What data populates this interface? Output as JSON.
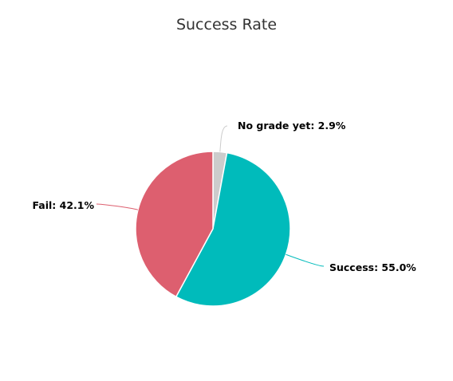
{
  "chart_data": {
    "type": "pie",
    "title": "Success Rate",
    "slices": [
      {
        "name": "No grade yet",
        "value": 2.9,
        "label": "No grade yet: 2.9%",
        "color": "#cccccc"
      },
      {
        "name": "Success",
        "value": 55.0,
        "label": "Success: 55.0%",
        "color": "#00bbbb"
      },
      {
        "name": "Fail",
        "value": 42.1,
        "label": "Fail: 42.1%",
        "color": "#dd5f6f"
      }
    ]
  }
}
